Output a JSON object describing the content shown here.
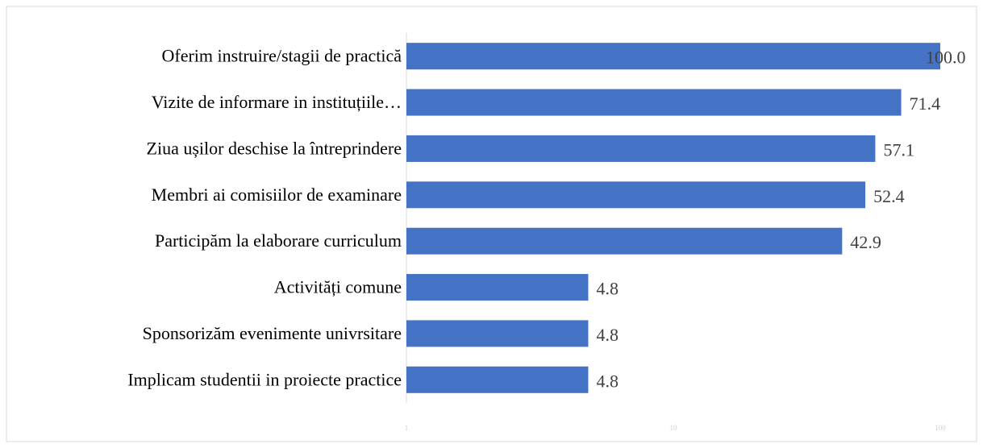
{
  "chart_data": {
    "type": "bar",
    "orientation": "horizontal",
    "categories": [
      "Oferim instruire/stagii de practică ",
      "Vizite de informare in instituțiile…",
      "Ziua ușilor deschise la întreprindere",
      "Membri ai comisiilor de examinare ",
      "Participăm la elaborare curriculum",
      "Activități comune",
      "Sponsorizăm evenimente univrsitare",
      "Implicam studentii in proiecte practice"
    ],
    "values": [
      100.0,
      71.4,
      57.1,
      52.4,
      42.9,
      4.8,
      4.8,
      4.8
    ],
    "value_labels": [
      "100.0",
      "71.4",
      "57.1",
      "52.4",
      "42.9",
      "4.8",
      "4.8",
      "4.8"
    ],
    "color": "#4472c4",
    "xlim": [
      1,
      100
    ],
    "xticks": [
      1,
      10,
      100
    ],
    "log_scale": true,
    "grid": false
  }
}
